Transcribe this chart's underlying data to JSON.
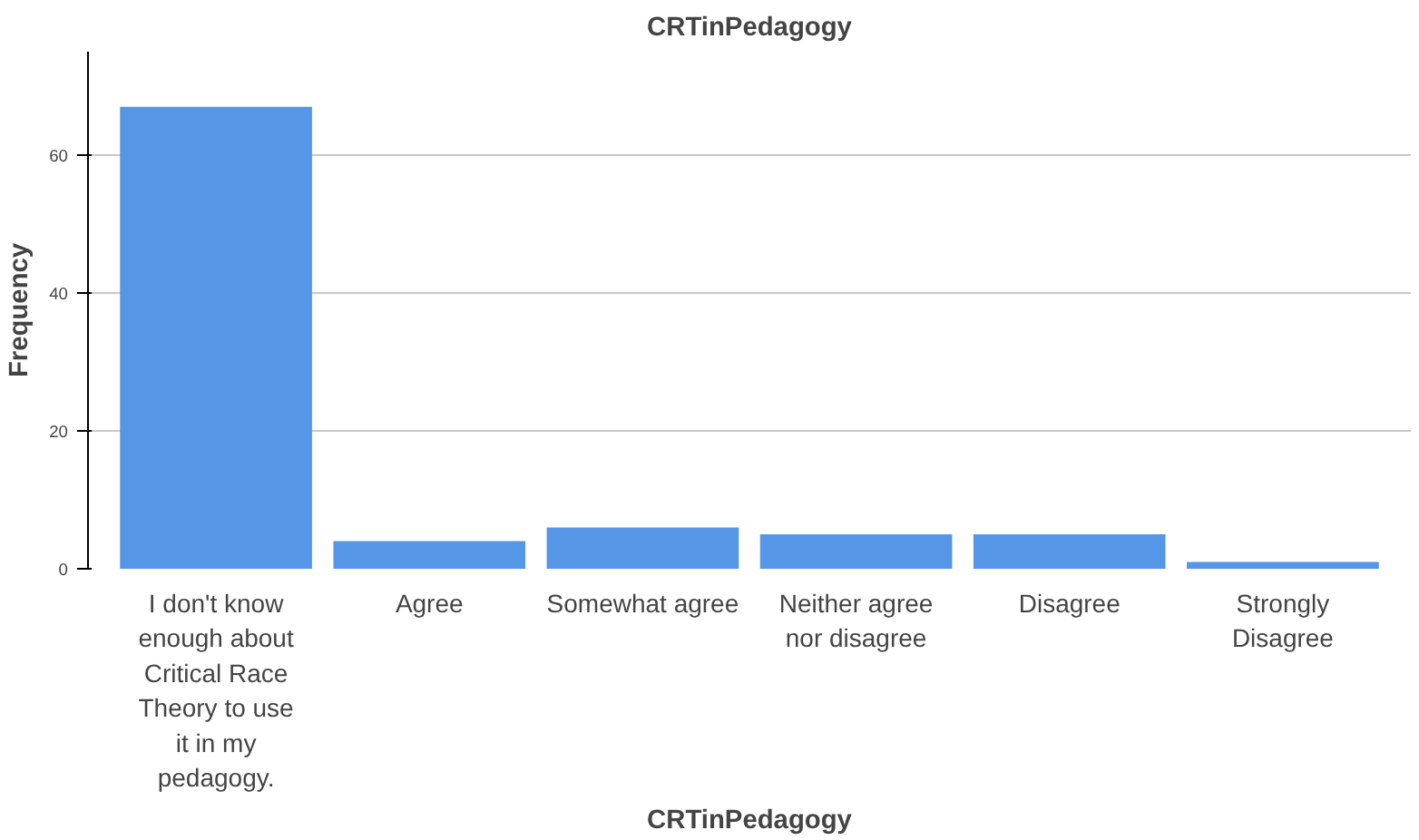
{
  "chart_data": {
    "type": "bar",
    "title": "CRTinPedagogy",
    "xlabel": "CRTinPedagogy",
    "ylabel": "Frequency",
    "categories": [
      "I don't know enough about Critical Race Theory to use it in my pedagogy.",
      "Agree",
      "Somewhat agree",
      "Neither agree nor disagree",
      "Disagree",
      "Strongly Disagree"
    ],
    "values": [
      67,
      4,
      6,
      5,
      5,
      1
    ],
    "color": "#5596e6",
    "ylim": [
      0,
      75
    ],
    "yticks": [
      0,
      20,
      40,
      60
    ],
    "grid": "y"
  }
}
